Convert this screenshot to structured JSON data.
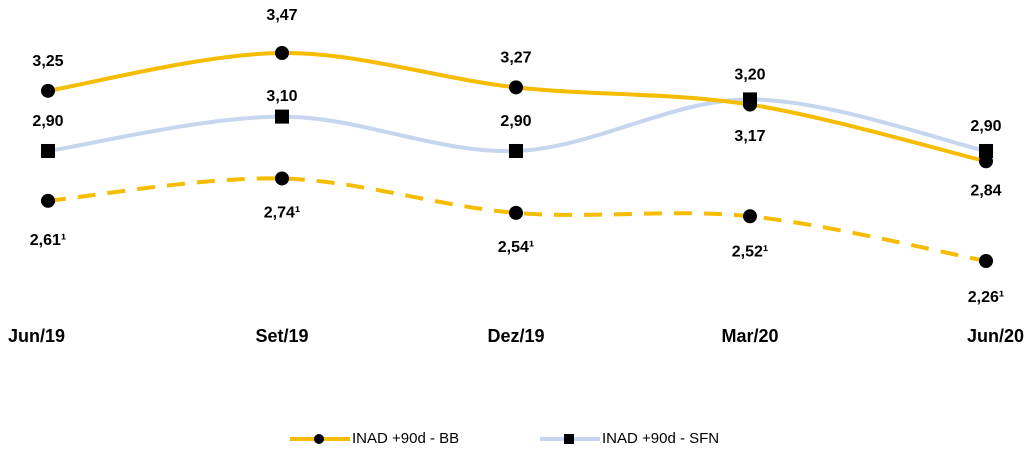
{
  "chart_data": {
    "type": "line",
    "categories": [
      "Jun/19",
      "Set/19",
      "Dez/19",
      "Mar/20",
      "Jun/20"
    ],
    "series": [
      {
        "name": "INAD +90d - BB",
        "color": "#f5bc00",
        "marker": "circle",
        "dash": false,
        "values": [
          3.25,
          3.47,
          3.27,
          3.17,
          2.84
        ],
        "value_labels": [
          "3,25",
          "3,47",
          "3,27",
          "3,17",
          "2,84"
        ]
      },
      {
        "name": "INAD +90d - SFN",
        "color": "#c5d6ee",
        "marker": "square",
        "dash": false,
        "values": [
          2.9,
          3.1,
          2.9,
          3.2,
          2.9
        ],
        "value_labels": [
          "2,90",
          "3,10",
          "2,90",
          "3,20",
          "2,90"
        ]
      },
      {
        "color": "#f5bc00",
        "marker": "circle",
        "dash": true,
        "values": [
          2.61,
          2.74,
          2.54,
          2.52,
          2.26
        ],
        "value_labels": [
          "2,61¹",
          "2,74¹",
          "2,54¹",
          "2,52¹",
          "2,26¹"
        ]
      }
    ]
  }
}
